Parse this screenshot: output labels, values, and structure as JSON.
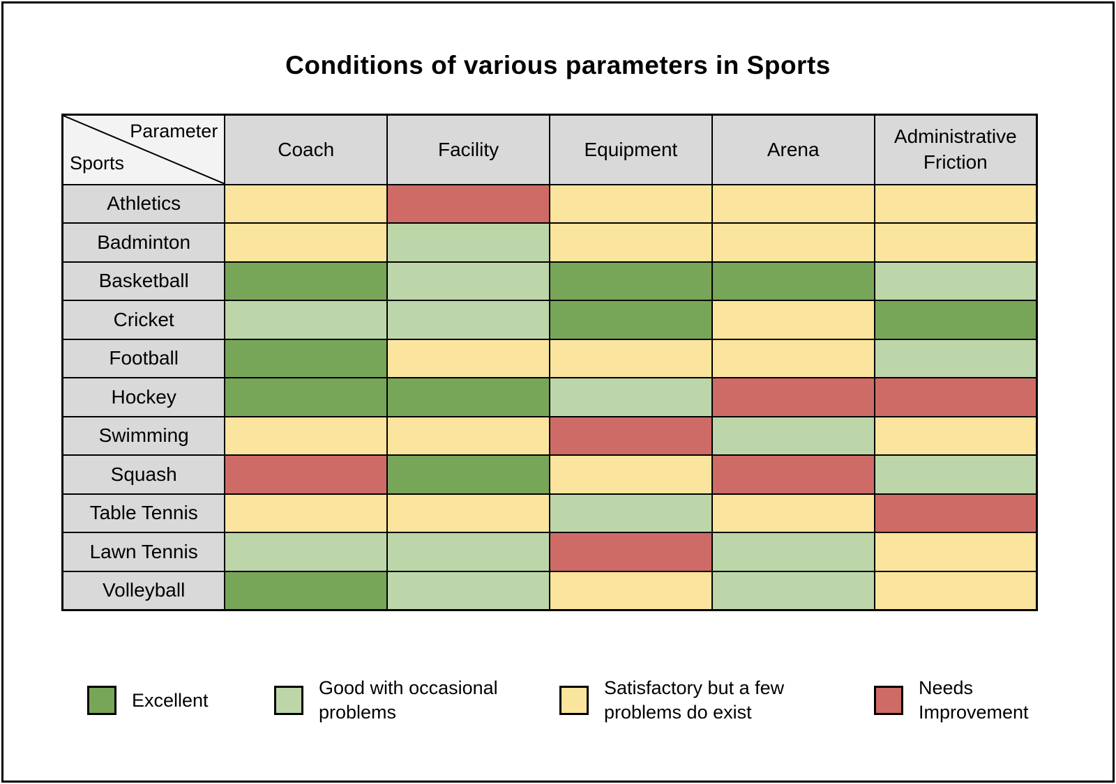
{
  "title": "Conditions of various parameters in Sports",
  "corner": {
    "parameter_label": "Parameter",
    "sports_label": "Sports"
  },
  "chart_data": {
    "type": "heatmap",
    "title": "Conditions of various parameters in Sports",
    "columns": [
      "Coach",
      "Facility",
      "Equipment",
      "Arena",
      "Administrative Friction"
    ],
    "rows": [
      "Athletics",
      "Badminton",
      "Basketball",
      "Cricket",
      "Football",
      "Hockey",
      "Swimming",
      "Squash",
      "Table Tennis",
      "Lawn Tennis",
      "Volleyball"
    ],
    "values": [
      [
        "satisfactory",
        "needs_improvement",
        "satisfactory",
        "satisfactory",
        "satisfactory"
      ],
      [
        "satisfactory",
        "good",
        "satisfactory",
        "satisfactory",
        "satisfactory"
      ],
      [
        "excellent",
        "good",
        "excellent",
        "excellent",
        "good"
      ],
      [
        "good",
        "good",
        "excellent",
        "satisfactory",
        "excellent"
      ],
      [
        "excellent",
        "satisfactory",
        "satisfactory",
        "satisfactory",
        "good"
      ],
      [
        "excellent",
        "excellent",
        "good",
        "needs_improvement",
        "needs_improvement"
      ],
      [
        "satisfactory",
        "satisfactory",
        "needs_improvement",
        "good",
        "satisfactory"
      ],
      [
        "needs_improvement",
        "excellent",
        "satisfactory",
        "needs_improvement",
        "good"
      ],
      [
        "satisfactory",
        "satisfactory",
        "good",
        "satisfactory",
        "needs_improvement"
      ],
      [
        "good",
        "good",
        "needs_improvement",
        "good",
        "satisfactory"
      ],
      [
        "excellent",
        "good",
        "satisfactory",
        "good",
        "satisfactory"
      ]
    ],
    "value_scale": [
      "excellent",
      "good",
      "satisfactory",
      "needs_improvement"
    ],
    "legend_position": "bottom",
    "grid": true
  },
  "legend": [
    {
      "key": "excellent",
      "label": "Excellent",
      "color": "#78A659"
    },
    {
      "key": "good",
      "label": "Good with occasional problems",
      "color": "#BDD6A9"
    },
    {
      "key": "satisfactory",
      "label": "Satisfactory but a few problems do exist",
      "color": "#FBE49D"
    },
    {
      "key": "needs_improvement",
      "label": "Needs Improvement",
      "color": "#CF6B66"
    }
  ],
  "colors": {
    "excellent": "#78A659",
    "good": "#BDD6A9",
    "satisfactory": "#FBE49D",
    "needs_improvement": "#CF6B66",
    "header_bg": "#D9D9D9",
    "row_label_bg": "#D9D9D9",
    "corner_bg": "#F3F3F3",
    "border": "#000000"
  }
}
